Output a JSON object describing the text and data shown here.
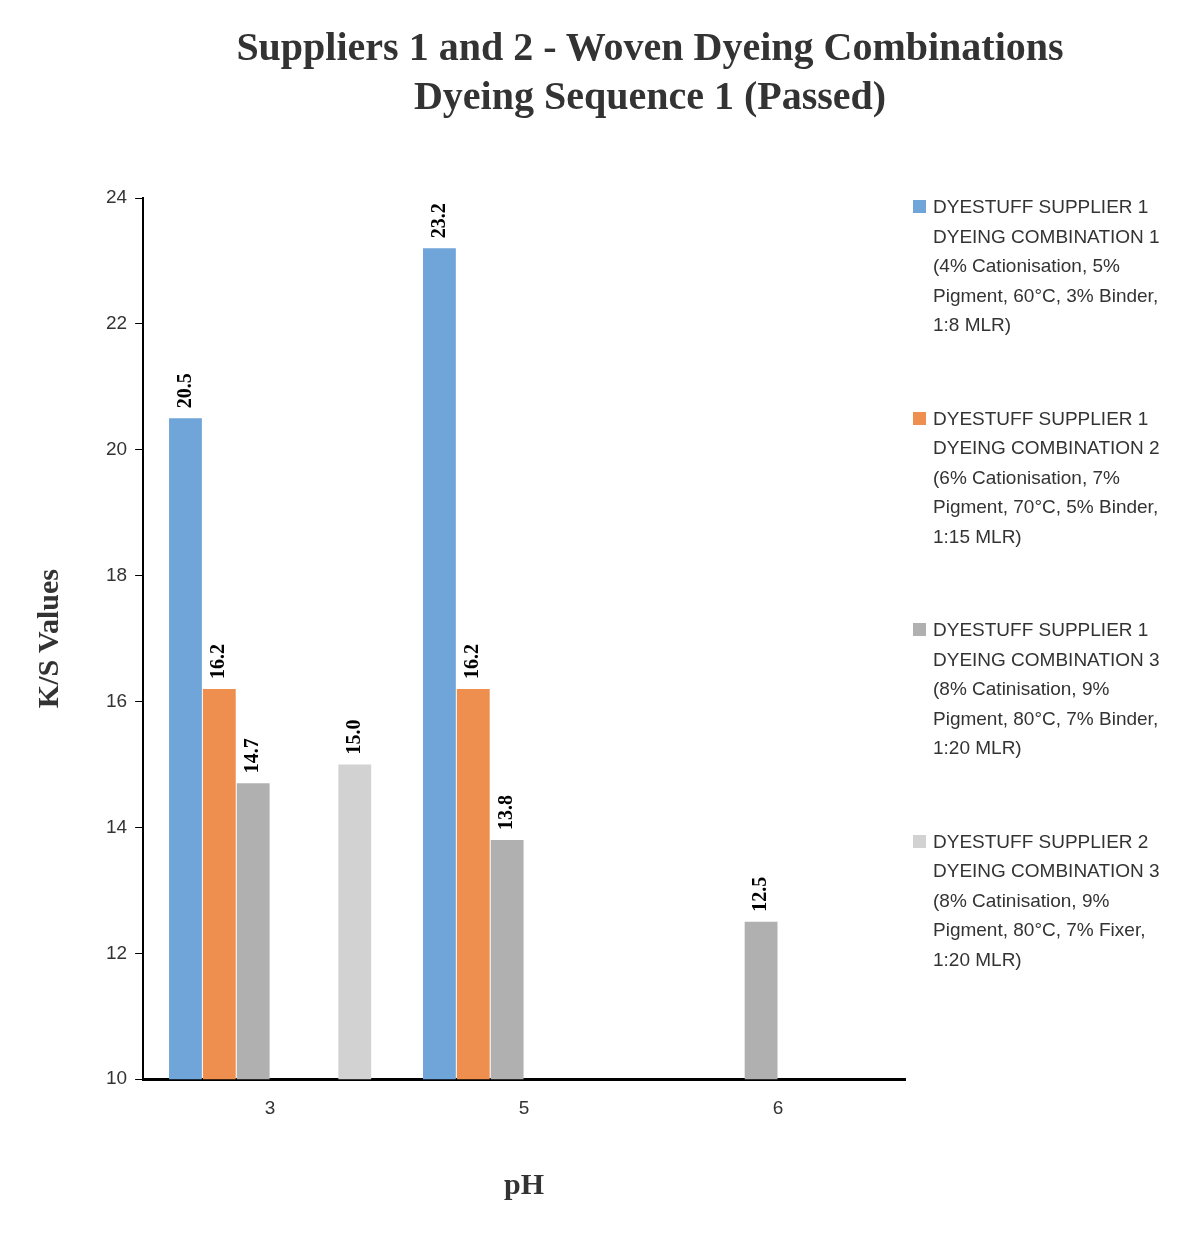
{
  "chart_data": {
    "type": "bar",
    "title": "Suppliers 1 and 2 - Woven Dyeing Combinations Dyeing Sequence 1 (Passed)",
    "xlabel": "pH",
    "ylabel": "K/S Values",
    "categories": [
      "3",
      "5",
      "6"
    ],
    "ylim": [
      10,
      24
    ],
    "yticks": [
      10,
      12,
      14,
      16,
      18,
      20,
      22,
      24
    ],
    "grid": false,
    "legend": "right",
    "series": [
      {
        "name": "DYESTUFF SUPPLIER 1 DYEING COMBINATION 1 (4% Cationisation, 5% Pigment, 60°C, 3% Binder, 1:8 MLR)",
        "color": "#70a5d9",
        "values": [
          20.5,
          23.2,
          null
        ],
        "value_labels": [
          "20.5",
          "23.2",
          null
        ]
      },
      {
        "name": "DYESTUFF SUPPLIER 1 DYEING COMBINATION 2 (6% Cationisation, 7% Pigment, 70°C, 5% Binder, 1:15 MLR)",
        "color": "#ef8f4f",
        "values": [
          16.2,
          16.2,
          null
        ],
        "value_labels": [
          "16.2",
          "16.2",
          null
        ]
      },
      {
        "name": "DYESTUFF SUPPLIER 1 DYEING COMBINATION 3 (8% Catinisation, 9% Pigment, 80°C, 7% Binder, 1:20 MLR)",
        "color": "#b0b0b0",
        "values": [
          14.7,
          13.8,
          12.5
        ],
        "value_labels": [
          "14.7",
          "13.8",
          "12.5"
        ]
      },
      {
        "color": "#70a5d9",
        "values": [
          null,
          null,
          null
        ]
      },
      {
        "color": "#ef8f4f",
        "values": [
          null,
          null,
          null
        ]
      },
      {
        "name": "DYESTUFF SUPPLIER 2 DYEING COMBINATION 3 (8% Catinisation, 9% Pigment, 80°C, 7% Fixer, 1:20 MLR)",
        "color": "#d2d2d2",
        "values": [
          15.0,
          null,
          null
        ],
        "value_labels": [
          "15.0",
          null,
          null
        ]
      }
    ]
  }
}
